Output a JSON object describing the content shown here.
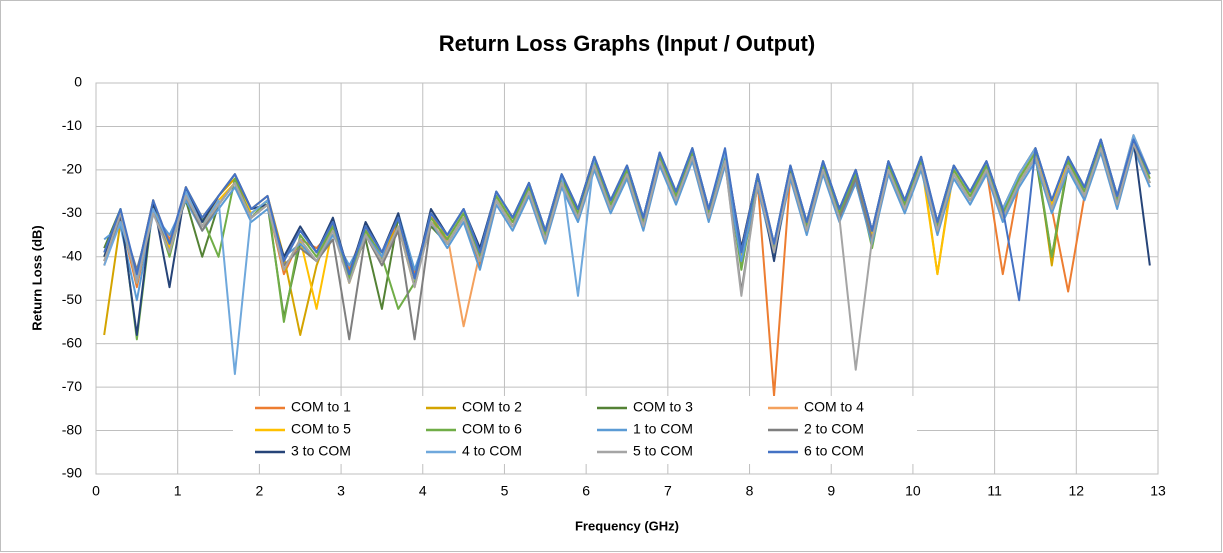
{
  "chart_data": {
    "type": "line",
    "title": "Return Loss Graphs (Input / Output)",
    "x_label": "Frequency (GHz)",
    "y_label": "Return Loss (dB)",
    "xlim": [
      0,
      13
    ],
    "ylim": [
      -90,
      0
    ],
    "xticks": [
      0,
      1,
      2,
      3,
      4,
      5,
      6,
      7,
      8,
      9,
      10,
      11,
      12,
      13
    ],
    "yticks": [
      0,
      -10,
      -20,
      -30,
      -40,
      -50,
      -60,
      -70,
      -80,
      -90
    ],
    "grid": true,
    "legend": "lower center",
    "x": [
      0.1,
      0.3,
      0.5,
      0.7,
      0.9,
      1.1,
      1.3,
      1.5,
      1.7,
      1.9,
      2.1,
      2.3,
      2.5,
      2.7,
      2.9,
      3.1,
      3.3,
      3.5,
      3.7,
      3.9,
      4.1,
      4.3,
      4.5,
      4.7,
      4.9,
      5.1,
      5.3,
      5.5,
      5.7,
      5.9,
      6.1,
      6.3,
      6.5,
      6.7,
      6.9,
      7.1,
      7.3,
      7.5,
      7.7,
      7.9,
      8.1,
      8.3,
      8.5,
      8.7,
      8.9,
      9.1,
      9.3,
      9.5,
      9.7,
      9.9,
      10.1,
      10.3,
      10.5,
      10.7,
      10.9,
      11.1,
      11.3,
      11.5,
      11.7,
      11.9,
      12.1,
      12.3,
      12.5,
      12.7,
      12.9
    ],
    "series": [
      {
        "name": "COM to 1",
        "color": "#ed7d31",
        "values": [
          -42,
          -31,
          -47,
          -29,
          -36,
          -26,
          -33,
          -28,
          -23,
          -31,
          -28,
          -44,
          -36,
          -38,
          -34,
          -43,
          -33,
          -41,
          -31,
          -44,
          -30,
          -37,
          -31,
          -42,
          -27,
          -33,
          -25,
          -36,
          -23,
          -31,
          -19,
          -29,
          -21,
          -33,
          -18,
          -27,
          -17,
          -31,
          -18,
          -42,
          -23,
          -72,
          -21,
          -34,
          -20,
          -31,
          -22,
          -36,
          -20,
          -29,
          -19,
          -34,
          -21,
          -27,
          -20,
          -44,
          -23,
          -17,
          -29,
          -48,
          -26,
          -15,
          -28,
          -14,
          -23
        ]
      },
      {
        "name": "COM to 2",
        "color": "#d4a400",
        "values": [
          -58,
          -32,
          -44,
          -27,
          -39,
          -24,
          -31,
          -26,
          -22,
          -29,
          -26,
          -40,
          -58,
          -42,
          -32,
          -46,
          -35,
          -39,
          -33,
          -45,
          -32,
          -35,
          -29,
          -39,
          -25,
          -31,
          -23,
          -34,
          -21,
          -29,
          -17,
          -27,
          -19,
          -31,
          -16,
          -25,
          -15,
          -29,
          -16,
          -39,
          -21,
          -37,
          -19,
          -32,
          -18,
          -29,
          -20,
          -34,
          -18,
          -27,
          -17,
          -44,
          -19,
          -25,
          -18,
          -29,
          -21,
          -15,
          -42,
          -17,
          -24,
          -13,
          -26,
          -13,
          -21
        ]
      },
      {
        "name": "COM to 3",
        "color": "#548235",
        "values": [
          -38,
          -29,
          -46,
          -30,
          -37,
          -27,
          -40,
          -28,
          -23,
          -31,
          -28,
          -54,
          -37,
          -41,
          -34,
          -44,
          -36,
          -52,
          -31,
          -45,
          -33,
          -37,
          -31,
          -41,
          -27,
          -33,
          -26,
          -36,
          -23,
          -31,
          -19,
          -29,
          -21,
          -33,
          -18,
          -27,
          -17,
          -31,
          -18,
          -41,
          -23,
          -39,
          -21,
          -34,
          -20,
          -31,
          -23,
          -36,
          -20,
          -29,
          -19,
          -34,
          -21,
          -27,
          -20,
          -31,
          -23,
          -17,
          -40,
          -19,
          -26,
          -15,
          -28,
          -14,
          -23
        ]
      },
      {
        "name": "COM to 4",
        "color": "#f4a15d",
        "values": [
          -41,
          -31,
          -44,
          -27,
          -37,
          -24,
          -33,
          -26,
          -21,
          -29,
          -26,
          -41,
          -34,
          -39,
          -32,
          -44,
          -33,
          -39,
          -30,
          -45,
          -30,
          -35,
          -56,
          -39,
          -25,
          -31,
          -23,
          -34,
          -22,
          -29,
          -18,
          -27,
          -19,
          -31,
          -17,
          -25,
          -16,
          -29,
          -16,
          -38,
          -21,
          -37,
          -20,
          -32,
          -18,
          -29,
          -20,
          -34,
          -18,
          -27,
          -17,
          -32,
          -19,
          -25,
          -18,
          -29,
          -21,
          -15,
          -27,
          -17,
          -24,
          -13,
          -26,
          -12,
          -21
        ]
      },
      {
        "name": "COM to 5",
        "color": "#ffc000",
        "values": [
          -39,
          -30,
          -46,
          -29,
          -38,
          -26,
          -32,
          -27,
          -23,
          -30,
          -27,
          -43,
          -36,
          -52,
          -33,
          -46,
          -34,
          -41,
          -33,
          -47,
          -31,
          -36,
          -30,
          -40,
          -26,
          -32,
          -24,
          -35,
          -22,
          -30,
          -18,
          -28,
          -20,
          -32,
          -17,
          -26,
          -16,
          -30,
          -17,
          -40,
          -22,
          -38,
          -20,
          -33,
          -19,
          -30,
          -21,
          -35,
          -19,
          -28,
          -18,
          -44,
          -20,
          -26,
          -19,
          -30,
          -22,
          -16,
          -28,
          -18,
          -25,
          -14,
          -27,
          -13,
          -22
        ]
      },
      {
        "name": "COM to 6",
        "color": "#70ad47",
        "values": [
          -40,
          -29,
          -59,
          -28,
          -40,
          -25,
          -31,
          -40,
          -22,
          -31,
          -27,
          -55,
          -35,
          -40,
          -33,
          -45,
          -34,
          -40,
          -52,
          -46,
          -31,
          -36,
          -30,
          -40,
          -26,
          -32,
          -24,
          -35,
          -22,
          -30,
          -18,
          -28,
          -20,
          -32,
          -17,
          -26,
          -16,
          -30,
          -17,
          -43,
          -22,
          -38,
          -20,
          -33,
          -19,
          -30,
          -21,
          -38,
          -19,
          -28,
          -18,
          -33,
          -20,
          -26,
          -19,
          -30,
          -22,
          -16,
          -40,
          -18,
          -25,
          -14,
          -27,
          -13,
          -22
        ]
      },
      {
        "name": "1 to COM",
        "color": "#5b9bd5",
        "values": [
          -36,
          -33,
          -50,
          -30,
          -35,
          -27,
          -34,
          -29,
          -24,
          -32,
          -29,
          -40,
          -37,
          -41,
          -35,
          -42,
          -35,
          -40,
          -30,
          -43,
          -32,
          -38,
          -32,
          -43,
          -28,
          -34,
          -26,
          -37,
          -24,
          -32,
          -20,
          -30,
          -22,
          -34,
          -19,
          -28,
          -18,
          -32,
          -19,
          -41,
          -24,
          -40,
          -22,
          -35,
          -21,
          -32,
          -23,
          -37,
          -21,
          -30,
          -20,
          -35,
          -22,
          -28,
          -21,
          -32,
          -24,
          -18,
          -30,
          -20,
          -27,
          -16,
          -29,
          -15,
          -24
        ]
      },
      {
        "name": "2 to COM",
        "color": "#7f7f7f",
        "values": [
          -41,
          -31,
          -43,
          -29,
          -39,
          -26,
          -34,
          -28,
          -23,
          -31,
          -28,
          -42,
          -38,
          -41,
          -36,
          -59,
          -35,
          -42,
          -34,
          -59,
          -32,
          -37,
          -31,
          -41,
          -27,
          -33,
          -25,
          -36,
          -23,
          -31,
          -19,
          -29,
          -21,
          -33,
          -18,
          -27,
          -17,
          -31,
          -18,
          -48,
          -23,
          -39,
          -21,
          -34,
          -20,
          -31,
          -22,
          -36,
          -20,
          -29,
          -19,
          -34,
          -21,
          -27,
          -20,
          -31,
          -23,
          -17,
          -29,
          -19,
          -26,
          -15,
          -28,
          -14,
          -23
        ]
      },
      {
        "name": "3 to COM",
        "color": "#264478",
        "values": [
          -40,
          -30,
          -58,
          -27,
          -47,
          -24,
          -32,
          -26,
          -21,
          -29,
          -28,
          -40,
          -33,
          -39,
          -31,
          -44,
          -32,
          -39,
          -30,
          -45,
          -29,
          -35,
          -29,
          -38,
          -25,
          -31,
          -23,
          -34,
          -21,
          -29,
          -17,
          -27,
          -19,
          -31,
          -16,
          -25,
          -15,
          -29,
          -16,
          -38,
          -21,
          -41,
          -19,
          -32,
          -18,
          -29,
          -20,
          -34,
          -18,
          -27,
          -17,
          -32,
          -19,
          -25,
          -18,
          -29,
          -21,
          -15,
          -27,
          -17,
          -24,
          -13,
          -26,
          -13,
          -42
        ]
      },
      {
        "name": "4 to COM",
        "color": "#6fa8dc",
        "values": [
          -42,
          -32,
          -45,
          -29,
          -37,
          -25,
          -33,
          -27,
          -67,
          -30,
          -27,
          -41,
          -34,
          -39,
          -32,
          -44,
          -33,
          -39,
          -31,
          -45,
          -30,
          -35,
          -29,
          -39,
          -25,
          -31,
          -23,
          -34,
          -21,
          -49,
          -17,
          -27,
          -19,
          -31,
          -16,
          -25,
          -15,
          -29,
          -16,
          -39,
          -21,
          -37,
          -19,
          -32,
          -18,
          -29,
          -20,
          -34,
          -18,
          -27,
          -17,
          -32,
          -19,
          -25,
          -18,
          -29,
          -21,
          -15,
          -27,
          -17,
          -24,
          -13,
          -26,
          -12,
          -21
        ]
      },
      {
        "name": "5 to COM",
        "color": "#a5a5a5",
        "values": [
          -41,
          -30,
          -46,
          -30,
          -39,
          -26,
          -33,
          -28,
          -23,
          -31,
          -28,
          -43,
          -36,
          -41,
          -34,
          -46,
          -35,
          -41,
          -33,
          -47,
          -32,
          -37,
          -31,
          -41,
          -27,
          -33,
          -25,
          -36,
          -23,
          -31,
          -19,
          -29,
          -21,
          -33,
          -18,
          -27,
          -17,
          -31,
          -18,
          -49,
          -23,
          -39,
          -21,
          -34,
          -20,
          -31,
          -66,
          -36,
          -20,
          -29,
          -19,
          -34,
          -21,
          -27,
          -20,
          -31,
          -23,
          -17,
          -29,
          -19,
          -26,
          -15,
          -28,
          -14,
          -23
        ]
      },
      {
        "name": "6 to COM",
        "color": "#4472c4",
        "values": [
          -39,
          -29,
          -44,
          -27,
          -37,
          -24,
          -31,
          -26,
          -21,
          -29,
          -26,
          -41,
          -34,
          -39,
          -32,
          -44,
          -33,
          -39,
          -31,
          -45,
          -30,
          -35,
          -29,
          -39,
          -25,
          -31,
          -23,
          -34,
          -21,
          -29,
          -17,
          -27,
          -19,
          -31,
          -16,
          -25,
          -15,
          -29,
          -15,
          -39,
          -21,
          -37,
          -19,
          -32,
          -18,
          -29,
          -20,
          -34,
          -18,
          -27,
          -17,
          -32,
          -19,
          -25,
          -18,
          -29,
          -50,
          -15,
          -27,
          -17,
          -24,
          -13,
          -26,
          -13,
          -21
        ]
      }
    ]
  }
}
